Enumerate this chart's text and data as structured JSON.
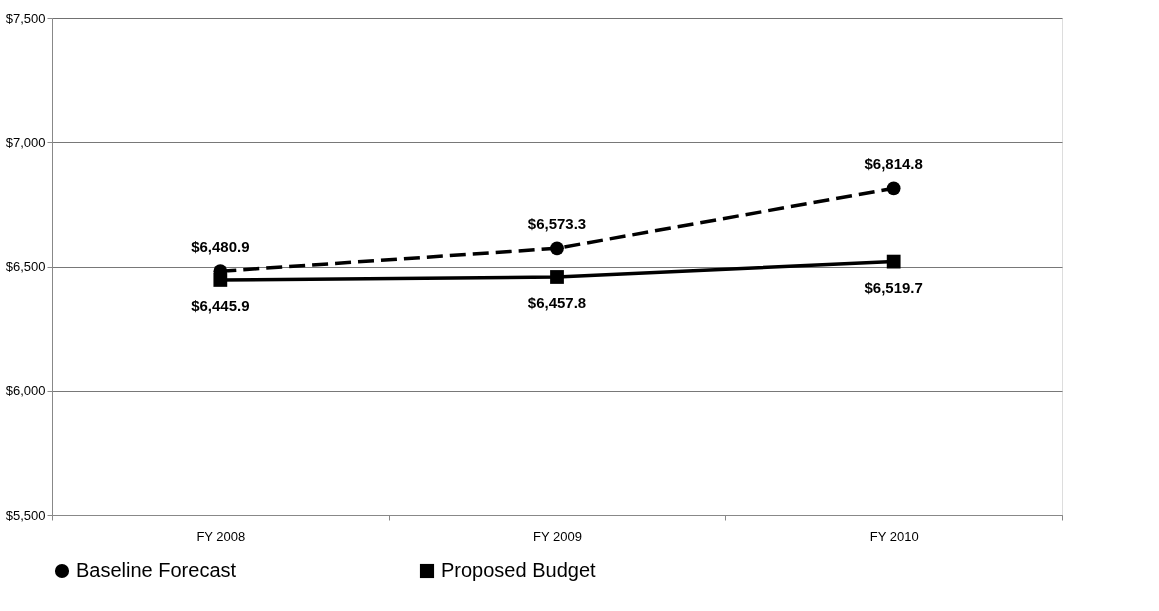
{
  "chart_data": {
    "type": "line",
    "categories": [
      "FY 2008",
      "FY 2009",
      "FY 2010"
    ],
    "series": [
      {
        "name": "Baseline Forecast",
        "color": "#000000",
        "values": [
          6480.9,
          6573.3,
          6814.8
        ],
        "marker": "circle",
        "line_style": "dashed",
        "value_labels": [
          "$6,480.9",
          "$6,573.3",
          "$6,814.8"
        ]
      },
      {
        "name": "Proposed Budget",
        "color": "#000000",
        "values": [
          6445.9,
          6457.8,
          6519.7
        ],
        "marker": "square",
        "line_style": "solid",
        "value_labels": [
          "$6,445.9",
          "$6,457.8",
          "$6,519.7"
        ]
      }
    ],
    "ylim": [
      5500,
      7500
    ],
    "yticks": [
      {
        "value": 5500,
        "label": "$5,500"
      },
      {
        "value": 6000,
        "label": "$6,000"
      },
      {
        "value": 6500,
        "label": "$6,500"
      },
      {
        "value": 7000,
        "label": "$7,000"
      },
      {
        "value": 7500,
        "label": "$7,500"
      }
    ],
    "grid": "y",
    "legend": "bottom"
  }
}
